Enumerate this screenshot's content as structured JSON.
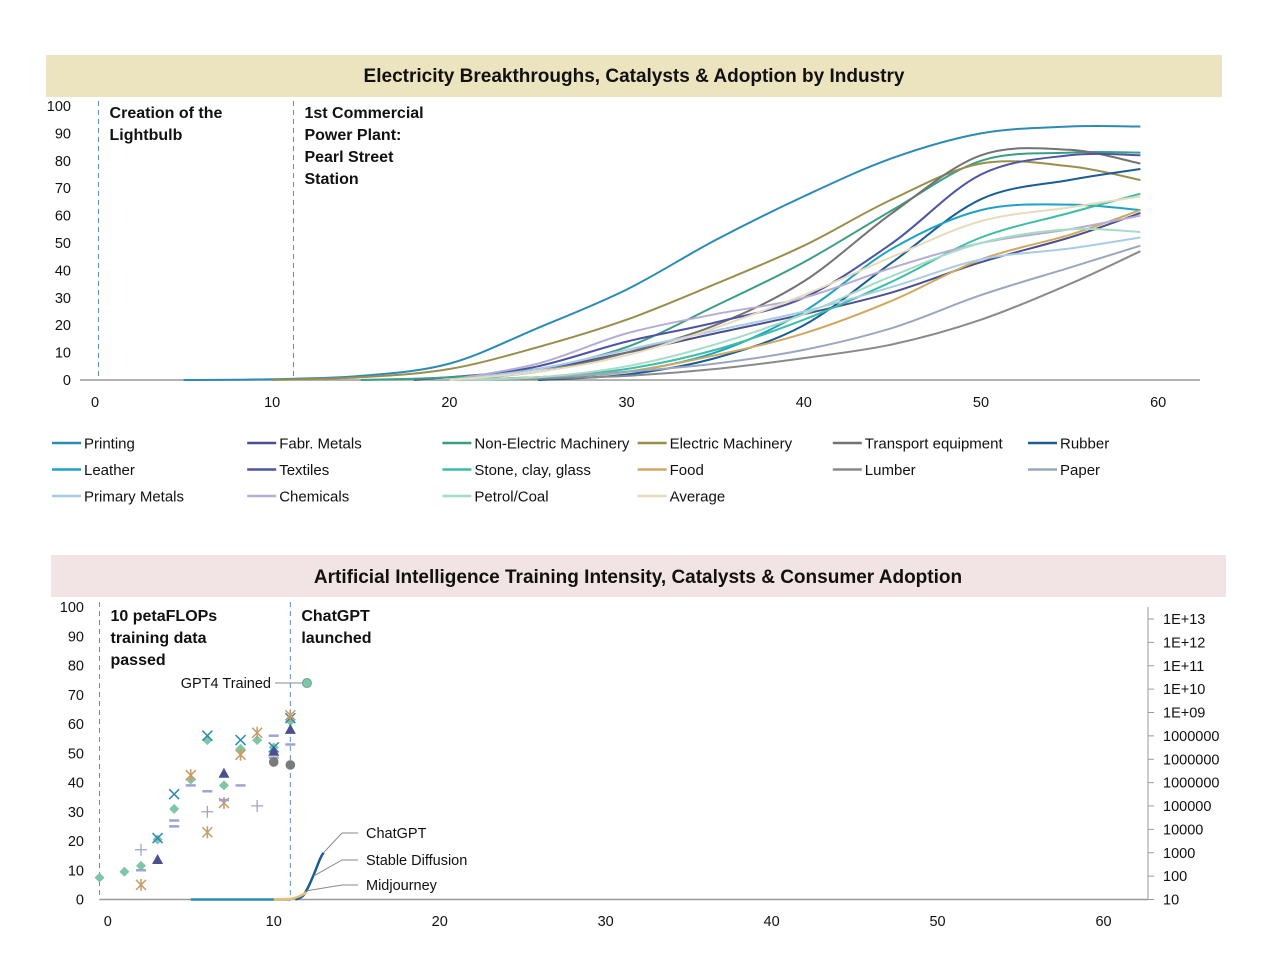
{
  "chart_data": [
    {
      "type": "line",
      "title": "Electricity Breakthroughs, Catalysts & Adoption by Industry",
      "title_bg": "#ece3bf",
      "xlim": [
        0,
        62
      ],
      "ylim": [
        0,
        100
      ],
      "x_ticks": [
        0,
        10,
        20,
        30,
        40,
        50,
        60
      ],
      "y_ticks": [
        0,
        10,
        20,
        30,
        40,
        50,
        60,
        70,
        80,
        90,
        100
      ],
      "annotations": [
        {
          "x": 0.2,
          "lines": [
            "Creation of the",
            "Lightbulb"
          ]
        },
        {
          "x": 11.2,
          "lines": [
            "1st Commercial",
            "Power Plant:",
            "Pearl Street",
            "Station"
          ]
        }
      ],
      "series": [
        {
          "name": "Printing",
          "color": "#2c8bb5",
          "x": [
            5,
            10,
            15,
            20,
            25,
            30,
            35,
            40,
            45,
            50,
            55,
            59
          ],
          "values": [
            0,
            0.3,
            1.5,
            6,
            19,
            33,
            51,
            67,
            81,
            90,
            92.5,
            92.5
          ]
        },
        {
          "name": "Fabr. Metals",
          "color": "#4a4f8f",
          "x": [
            18,
            25,
            30,
            35,
            40,
            45,
            50,
            55,
            59
          ],
          "values": [
            0,
            4,
            10,
            17,
            24,
            32,
            43,
            52,
            61
          ]
        },
        {
          "name": "Non-Electric Machinery",
          "color": "#3a9e84",
          "x": [
            15,
            20,
            25,
            30,
            35,
            40,
            45,
            50,
            55,
            59
          ],
          "values": [
            0,
            1,
            4,
            12,
            27,
            43,
            62,
            80,
            83,
            83
          ]
        },
        {
          "name": "Electric Machinery",
          "color": "#9a8e4c",
          "x": [
            10,
            15,
            20,
            25,
            30,
            35,
            40,
            45,
            50,
            55,
            59
          ],
          "values": [
            0,
            1,
            4,
            12,
            22,
            35,
            49,
            66,
            79,
            78,
            73
          ]
        },
        {
          "name": "Transport equipment",
          "color": "#737373",
          "x": [
            20,
            25,
            30,
            35,
            40,
            45,
            50,
            55,
            59
          ],
          "values": [
            0,
            3,
            10,
            20,
            36,
            61,
            82,
            84,
            79
          ]
        },
        {
          "name": "Rubber",
          "color": "#1a5c94",
          "x": [
            25,
            30,
            35,
            40,
            45,
            50,
            55,
            59
          ],
          "values": [
            0,
            2,
            8,
            20,
            43,
            66,
            73,
            77
          ]
        },
        {
          "name": "Leather",
          "color": "#1ea2c4",
          "x": [
            20,
            25,
            30,
            35,
            40,
            45,
            50,
            55,
            59
          ],
          "values": [
            0,
            1,
            3,
            10,
            25,
            48,
            62,
            64,
            62
          ]
        },
        {
          "name": "Textiles",
          "color": "#4d54a2",
          "x": [
            20,
            25,
            30,
            35,
            40,
            45,
            50,
            55,
            59
          ],
          "values": [
            0,
            5,
            14,
            21,
            30,
            50,
            75,
            82,
            82
          ]
        },
        {
          "name": "Stone, clay, glass",
          "color": "#3bbea4",
          "x": [
            20,
            25,
            30,
            35,
            40,
            45,
            50,
            55,
            59
          ],
          "values": [
            0,
            1,
            4,
            11,
            22,
            36,
            52,
            61,
            68
          ]
        },
        {
          "name": "Food",
          "color": "#cfa960",
          "x": [
            20,
            25,
            30,
            35,
            40,
            45,
            50,
            55,
            59
          ],
          "values": [
            0,
            1,
            3,
            9,
            17,
            29,
            44,
            53,
            62
          ]
        },
        {
          "name": "Lumber",
          "color": "#8a8a8a",
          "x": [
            20,
            25,
            30,
            35,
            40,
            45,
            50,
            55,
            59
          ],
          "values": [
            0,
            0.5,
            1.5,
            4,
            8,
            13,
            22,
            35,
            47
          ]
        },
        {
          "name": "Paper",
          "color": "#9aa7bf",
          "x": [
            20,
            25,
            30,
            35,
            40,
            45,
            50,
            55,
            59
          ],
          "values": [
            0,
            1,
            3,
            6,
            11,
            19,
            31,
            41,
            49
          ]
        },
        {
          "name": "Primary Metals",
          "color": "#a9cce6",
          "x": [
            20,
            25,
            30,
            35,
            40,
            45,
            50,
            55,
            59
          ],
          "values": [
            0,
            4,
            11,
            18,
            25,
            34,
            44,
            48,
            52
          ]
        },
        {
          "name": "Chemicals",
          "color": "#b5aed2",
          "x": [
            20,
            25,
            30,
            35,
            40,
            45,
            50,
            55,
            59
          ],
          "values": [
            0,
            6,
            17,
            24,
            30,
            41,
            50,
            55,
            60
          ]
        },
        {
          "name": "Petrol/Coal",
          "color": "#a6dcc6",
          "x": [
            20,
            25,
            30,
            35,
            40,
            45,
            50,
            55,
            59
          ],
          "values": [
            0,
            1,
            5,
            13,
            24,
            38,
            50,
            55,
            54
          ]
        },
        {
          "name": "Average",
          "color": "#e6dcbc",
          "x": [
            20,
            25,
            30,
            35,
            40,
            45,
            50,
            55,
            59
          ],
          "values": [
            0,
            3,
            9,
            19,
            31,
            45,
            58,
            63,
            67
          ]
        }
      ]
    },
    {
      "type": "line",
      "title": "Artificial Intelligence Training Intensity, Catalysts & Consumer Adoption",
      "title_bg": "#f2e4e4",
      "xlim": [
        -0.5,
        62.5
      ],
      "ylim": [
        0,
        100
      ],
      "x_ticks": [
        0,
        10,
        20,
        30,
        40,
        50,
        60
      ],
      "y_ticks": [
        0,
        10,
        20,
        30,
        40,
        50,
        60,
        70,
        80,
        90,
        100
      ],
      "y2_ticks": [
        "10",
        "100",
        "1000",
        "10000",
        "100000",
        "1000000",
        "1000000",
        "1000000",
        "1E+09",
        "1E+10",
        "1E+11",
        "1E+12",
        "1E+13"
      ],
      "annotations": [
        {
          "x": -0.5,
          "lines": [
            "10 petaFLOPs",
            "training data",
            "passed"
          ]
        },
        {
          "x": 11,
          "lines": [
            "ChatGPT",
            "launched"
          ]
        }
      ],
      "point_label": {
        "text": "GPT4 Trained",
        "x": 12,
        "y": 74,
        "color": "#7ec6a8"
      },
      "series": [
        {
          "name": "ChatGPT",
          "color": "#1a5c94",
          "x": [
            11.3,
            11.8,
            12.3,
            12.8,
            13.0
          ],
          "values": [
            0,
            1.5,
            7,
            14,
            16
          ]
        },
        {
          "name": "Stable Diffusion",
          "color": "#2c8bb5",
          "x": [
            5,
            11
          ],
          "values": [
            0,
            0
          ]
        },
        {
          "name": "Midjourney",
          "color": "#e3c07a",
          "x": [
            10,
            11,
            11.5,
            12
          ],
          "values": [
            0,
            0.2,
            1,
            2.5
          ]
        }
      ],
      "scatter": [
        {
          "marker": "diamond",
          "color": "#7ec6a8",
          "x": [
            -0.5,
            1,
            2,
            3,
            4,
            5,
            6,
            7,
            8,
            9,
            10,
            11
          ],
          "values": [
            7.5,
            9.5,
            11.5,
            20.5,
            31,
            41,
            54.5,
            39,
            51.5,
            54.5,
            52,
            61
          ]
        },
        {
          "marker": "x",
          "color": "#2c8bb5",
          "x": [
            3,
            4,
            6,
            8,
            10,
            11
          ],
          "values": [
            21,
            36,
            56,
            54.5,
            52,
            62
          ]
        },
        {
          "marker": "star",
          "color": "#c99a66",
          "x": [
            2,
            5,
            6,
            7,
            8,
            9,
            11
          ],
          "values": [
            5,
            42.5,
            23,
            33,
            49.5,
            57,
            63
          ]
        },
        {
          "marker": "plus",
          "color": "#9fa6c4",
          "x": [
            2,
            6,
            9
          ],
          "values": [
            17,
            30,
            32
          ]
        },
        {
          "marker": "dash",
          "color": "#9ea3d0",
          "x": [
            2,
            4,
            4,
            5,
            6,
            7,
            8,
            10,
            10,
            11
          ],
          "values": [
            10,
            25,
            27,
            39,
            37,
            34,
            39,
            48.5,
            56,
            53
          ]
        },
        {
          "marker": "triangle",
          "color": "#4a4f8f",
          "x": [
            3,
            7,
            10,
            11
          ],
          "values": [
            13.5,
            43,
            50.5,
            58
          ]
        },
        {
          "marker": "circle",
          "color": "#7a7a7a",
          "x": [
            10,
            11
          ],
          "values": [
            47,
            46
          ]
        }
      ]
    }
  ]
}
